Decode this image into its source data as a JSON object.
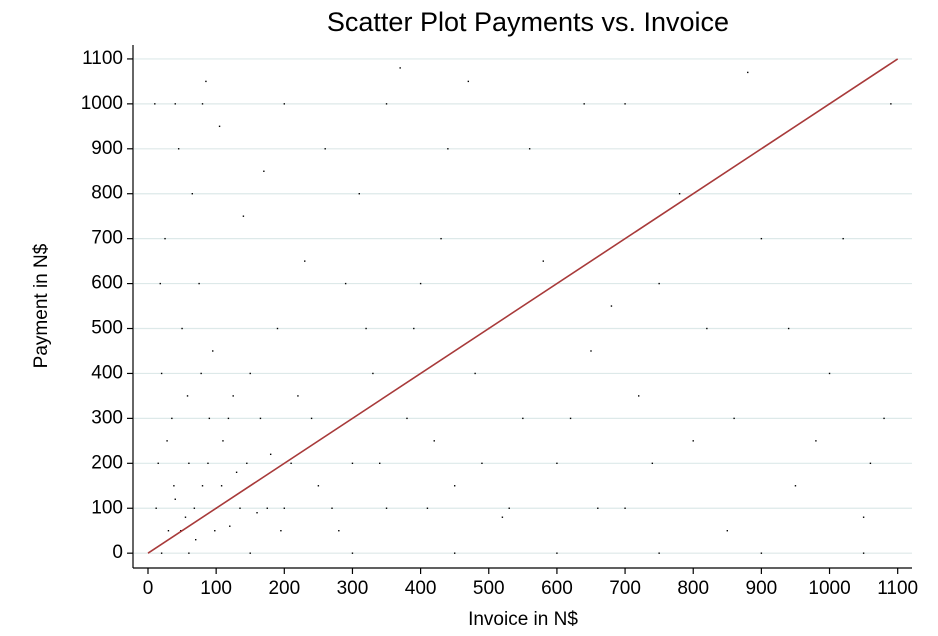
{
  "chart_data": {
    "type": "scatter",
    "title": "Scatter Plot Payments vs. Invoice",
    "xlabel": "Invoice in N$",
    "ylabel": "Payment in N$",
    "xlim": [
      -22,
      1121
    ],
    "ylim": [
      -33,
      1131
    ],
    "xticks": [
      0,
      100,
      200,
      300,
      400,
      500,
      600,
      700,
      800,
      900,
      1000,
      1100
    ],
    "yticks": [
      0,
      100,
      200,
      300,
      400,
      500,
      600,
      700,
      800,
      900,
      1000,
      1100
    ],
    "grid": true,
    "color": "#000000",
    "x": [
      20,
      60,
      150,
      300,
      450,
      600,
      750,
      900,
      1050,
      10,
      40,
      80,
      200,
      350,
      700,
      1000,
      30,
      40,
      55,
      60,
      70,
      80,
      90,
      100,
      110,
      120,
      130,
      150,
      160,
      180,
      200,
      220,
      250,
      280,
      300,
      320,
      350,
      380,
      400,
      420,
      450,
      480,
      500,
      520,
      550,
      600,
      650,
      700,
      750,
      800,
      850,
      900,
      950,
      1000,
      1050,
      1080,
      25,
      45,
      65,
      85,
      105,
      140,
      170,
      230,
      260,
      310,
      370,
      430,
      470,
      560,
      640,
      780,
      880,
      20,
      35,
      50,
      75,
      95,
      125,
      190,
      240,
      290,
      330,
      390,
      440,
      580,
      680,
      720,
      820,
      980,
      1020,
      1090,
      15,
      12,
      18,
      28,
      38,
      48,
      58,
      68,
      78,
      88,
      98,
      108,
      118,
      135,
      145,
      165,
      175,
      195,
      210,
      270,
      340,
      410,
      490,
      530,
      620,
      660,
      740,
      860,
      940,
      1060
    ],
    "values": [
      0,
      0,
      0,
      0,
      0,
      0,
      0,
      0,
      0,
      1000,
      1000,
      1000,
      1000,
      1000,
      1000,
      1000,
      50,
      120,
      80,
      200,
      30,
      150,
      300,
      100,
      250,
      60,
      180,
      400,
      90,
      220,
      100,
      350,
      150,
      50,
      200,
      500,
      100,
      300,
      600,
      250,
      150,
      400,
      500,
      80,
      300,
      200,
      450,
      100,
      600,
      250,
      50,
      700,
      150,
      400,
      80,
      300,
      700,
      900,
      800,
      1050,
      950,
      750,
      850,
      650,
      900,
      800,
      1080,
      700,
      1050,
      900,
      1000,
      800,
      1070,
      400,
      300,
      500,
      600,
      450,
      350,
      500,
      300,
      600,
      400,
      500,
      900,
      650,
      550,
      350,
      500,
      250,
      700,
      1000,
      200,
      100,
      600,
      250,
      150,
      50,
      350,
      100,
      400,
      200,
      50,
      150,
      300,
      100,
      200,
      300,
      100,
      50,
      200,
      100,
      200,
      100,
      200,
      100,
      300,
      100,
      200,
      300,
      500,
      200
    ],
    "reference_line": {
      "x": [
        0,
        1100
      ],
      "y": [
        0,
        1100
      ],
      "color": "#a83a3a"
    }
  }
}
